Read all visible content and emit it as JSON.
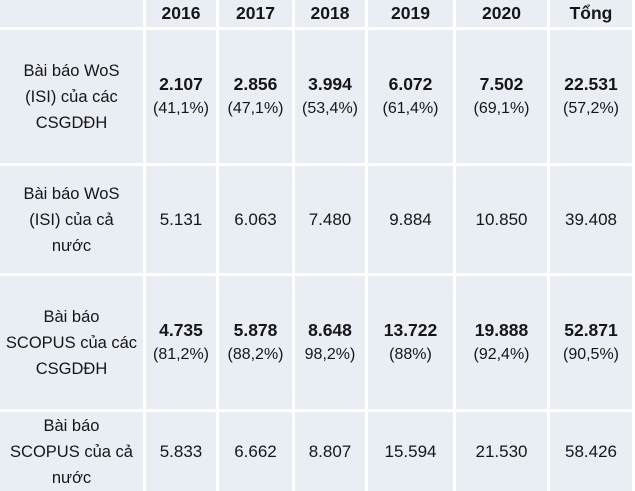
{
  "colors": {
    "cell_bg": "#e9edf4",
    "grid": "#ffffff",
    "text": "#161616"
  },
  "table": {
    "header": [
      "",
      "2016",
      "2017",
      "2018",
      "2019",
      "2020",
      "Tổng"
    ],
    "rows": [
      {
        "label": "Bài báo WoS\n(ISI) của các\nCSGDĐH",
        "values": [
          "2.107",
          "2.856",
          "3.994",
          "6.072",
          "7.502",
          "22.531"
        ],
        "pcts": [
          "(41,1%)",
          "(47,1%)",
          "(53,4%)",
          "(61,4%)",
          "(69,1%)",
          "(57,2%)"
        ]
      },
      {
        "label": "Bài báo WoS\n(ISI) của cả\nnước",
        "values": [
          "5.131",
          "6.063",
          "7.480",
          "9.884",
          "10.850",
          "39.408"
        ]
      },
      {
        "label": "Bài báo\nSCOPUS của các\nCSGDĐH",
        "values": [
          "4.735",
          "5.878",
          "8.648",
          "13.722",
          "19.888",
          "52.871"
        ],
        "pcts": [
          "(81,2%)",
          "(88,2%)",
          "98,2%)",
          "(88%)",
          "(92,4%)",
          "(90,5%)"
        ]
      },
      {
        "label": "Bài báo\nSCOPUS của cả\nnước",
        "values": [
          "5.833",
          "6.662",
          "8.807",
          "15.594",
          "21.530",
          "58.426"
        ]
      }
    ]
  },
  "chart_data": {
    "type": "table",
    "title": "",
    "categories": [
      "2016",
      "2017",
      "2018",
      "2019",
      "2020",
      "Tổng"
    ],
    "series": [
      {
        "name": "Bài báo WoS (ISI) của các CSGDĐH",
        "values": [
          2107,
          2856,
          3994,
          6072,
          7502
        ],
        "total": 22531,
        "percentages": [
          41.1,
          47.1,
          53.4,
          61.4,
          69.1
        ],
        "total_percentage": 57.2
      },
      {
        "name": "Bài báo WoS (ISI) của cả nước",
        "values": [
          5131,
          6063,
          7480,
          9884,
          10850
        ],
        "total": 39408
      },
      {
        "name": "Bài báo SCOPUS của các CSGDĐH",
        "values": [
          4735,
          5878,
          8648,
          13722,
          19888
        ],
        "total": 52871,
        "percentages": [
          81.2,
          88.2,
          98.2,
          88,
          92.4
        ],
        "total_percentage": 90.5
      },
      {
        "name": "Bài báo SCOPUS của cả nước",
        "values": [
          5833,
          6662,
          8807,
          15594,
          21530
        ],
        "total": 58426
      }
    ]
  }
}
